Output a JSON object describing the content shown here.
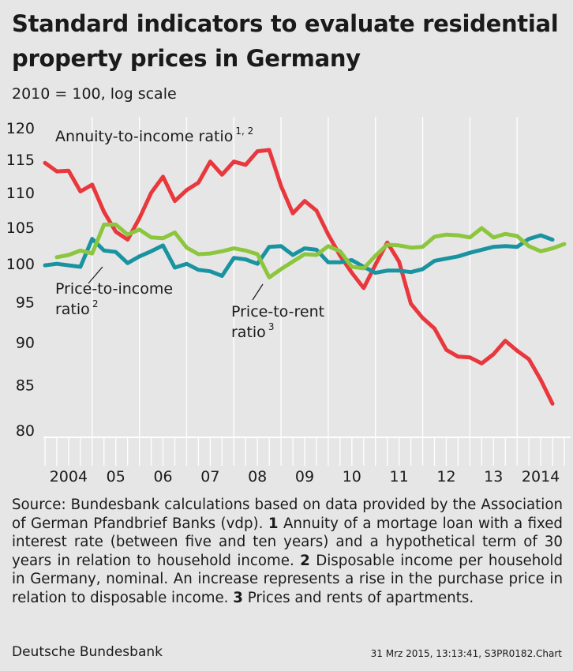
{
  "header": {
    "title": "Standard indicators to evaluate residential property prices in Germany",
    "subtitle": "2010 = 100, log scale"
  },
  "footer": {
    "source_intro": "Source: Bundesbank calculations based on data provided by the Association of German Pfandbrief Banks (vdp).",
    "note1_num": "1",
    "note1_text": "Annuity of a mortage loan with a fixed interest rate (between five and ten years) and a hypothetical term of 30 years in relation to household income.",
    "note2_num": "2",
    "note2_text": "Disposable income per household in Germany, nominal. An increase represents a rise in the purchase price in relation to disposable income.",
    "note3_num": "3",
    "note3_text": "Prices and rents of apartments.",
    "publisher": "Deutsche Bundesbank",
    "stamp": "31 Mrz 2015, 13:13:41, S3PR0182.Chart"
  },
  "chart_data": {
    "type": "line",
    "yscale": "log",
    "ylim": [
      80,
      120
    ],
    "yticks": [
      80,
      85,
      90,
      95,
      100,
      105,
      110,
      115,
      120
    ],
    "xlim": [
      2004.0,
      2015.0
    ],
    "grid": "vertical lines at year boundaries",
    "year_ticks": [
      "2004",
      "05",
      "06",
      "07",
      "08",
      "09",
      "10",
      "11",
      "12",
      "13",
      "2014"
    ],
    "colors": {
      "background": "#e6e6e6",
      "annuity": "#e8383d",
      "income": "#1a93a0",
      "rent": "#8cc63e"
    },
    "series": [
      {
        "key": "annuity",
        "label": "Annuity-to-income ratio",
        "label_sup": "1, 2",
        "x": [
          2004.0,
          2004.25,
          2004.5,
          2004.75,
          2005.0,
          2005.25,
          2005.5,
          2005.75,
          2006.0,
          2006.25,
          2006.5,
          2006.75,
          2007.0,
          2007.25,
          2007.5,
          2007.75,
          2008.0,
          2008.25,
          2008.5,
          2008.75,
          2009.0,
          2009.25,
          2009.5,
          2009.75,
          2010.0,
          2010.25,
          2010.5,
          2010.75,
          2011.0,
          2011.25,
          2011.5,
          2011.75,
          2012.0,
          2012.25,
          2012.5,
          2012.75,
          2013.0,
          2013.25,
          2013.5,
          2013.75,
          2014.0,
          2014.25,
          2014.5,
          2014.75
        ],
        "y": [
          114.5,
          113.2,
          113.3,
          110.2,
          111.2,
          107.2,
          104.4,
          103.3,
          106.3,
          110.0,
          112.4,
          108.8,
          110.4,
          111.5,
          114.7,
          112.7,
          114.7,
          114.2,
          116.3,
          116.5,
          111.0,
          107.0,
          108.8,
          107.4,
          104.0,
          101.1,
          98.8,
          96.8,
          99.9,
          102.9,
          100.3,
          94.8,
          93.0,
          91.7,
          89.1,
          88.3,
          88.2,
          87.5,
          88.6,
          90.2,
          89.0,
          88.0,
          85.6,
          82.9
        ]
      },
      {
        "key": "income",
        "label": "Price-to-income ratio",
        "label_sup": "2",
        "x": [
          2004.0,
          2004.25,
          2004.5,
          2004.75,
          2005.0,
          2005.25,
          2005.5,
          2005.75,
          2006.0,
          2006.25,
          2006.5,
          2006.75,
          2007.0,
          2007.25,
          2007.5,
          2007.75,
          2008.0,
          2008.25,
          2008.5,
          2008.75,
          2009.0,
          2009.25,
          2009.5,
          2009.75,
          2010.0,
          2010.25,
          2010.5,
          2010.75,
          2011.0,
          2011.25,
          2011.5,
          2011.75,
          2012.0,
          2012.25,
          2012.5,
          2012.75,
          2013.0,
          2013.25,
          2013.5,
          2013.75,
          2014.0,
          2014.25,
          2014.5,
          2014.75
        ],
        "y": [
          99.8,
          100.0,
          99.8,
          99.6,
          103.4,
          101.8,
          101.6,
          100.1,
          101.0,
          101.7,
          102.5,
          99.5,
          100.0,
          99.2,
          99.0,
          98.4,
          100.8,
          100.6,
          100.0,
          102.3,
          102.4,
          101.2,
          102.1,
          101.9,
          100.2,
          100.2,
          100.5,
          99.6,
          98.8,
          99.1,
          99.1,
          98.9,
          99.3,
          100.4,
          100.7,
          101.0,
          101.5,
          101.9,
          102.3,
          102.4,
          102.3,
          103.4,
          103.9,
          103.3
        ]
      },
      {
        "key": "rent",
        "label": "Price-to-rent ratio",
        "label_sup": "3",
        "x": [
          2004.25,
          2004.5,
          2004.75,
          2005.0,
          2005.25,
          2005.5,
          2005.75,
          2006.0,
          2006.25,
          2006.5,
          2006.75,
          2007.0,
          2007.25,
          2007.5,
          2007.75,
          2008.0,
          2008.25,
          2008.5,
          2008.75,
          2009.0,
          2009.25,
          2009.5,
          2009.75,
          2010.0,
          2010.25,
          2010.5,
          2010.75,
          2011.0,
          2011.25,
          2011.5,
          2011.75,
          2012.0,
          2012.25,
          2012.5,
          2012.75,
          2013.0,
          2013.25,
          2013.5,
          2013.75,
          2014.0,
          2014.25,
          2014.5,
          2014.75,
          2015.0
        ],
        "y": [
          100.9,
          101.2,
          101.8,
          101.4,
          105.4,
          105.4,
          104.0,
          104.7,
          103.6,
          103.5,
          104.3,
          102.2,
          101.3,
          101.4,
          101.7,
          102.1,
          101.8,
          101.3,
          98.2,
          99.3,
          100.3,
          101.3,
          101.2,
          102.4,
          101.7,
          99.6,
          99.4,
          101.1,
          102.6,
          102.5,
          102.2,
          102.3,
          103.7,
          104.0,
          103.9,
          103.6,
          104.9,
          103.6,
          104.1,
          103.8,
          102.4,
          101.7,
          102.1,
          102.7
        ]
      }
    ],
    "annotations": {
      "annuity": {
        "text": "Annuity-to-income ratio",
        "sup": "1, 2"
      },
      "income_line1": "Price-to-income",
      "income_line2": "ratio",
      "income_sup": "2",
      "rent_line1": "Price-to-rent",
      "rent_line2": "ratio",
      "rent_sup": "3"
    }
  }
}
